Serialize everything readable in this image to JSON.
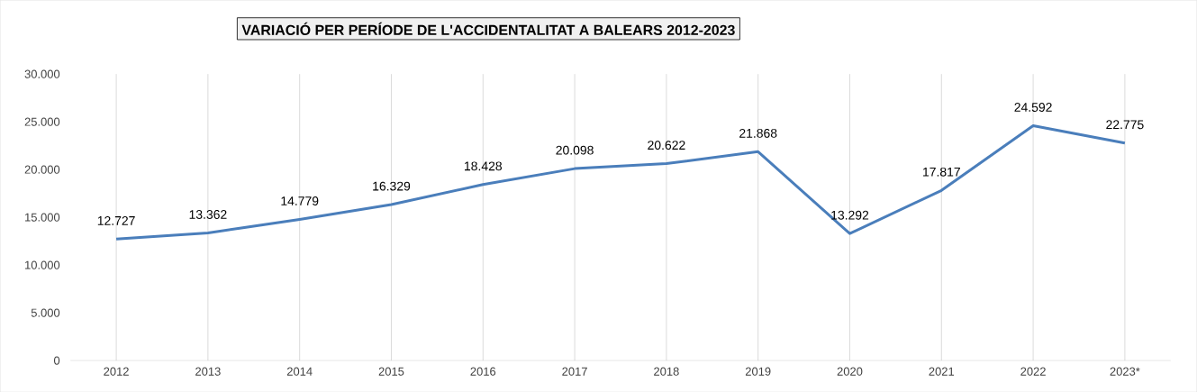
{
  "chart_data": {
    "type": "line",
    "title": "VARIACIÓ PER PERÍODE DE L'ACCIDENTALITAT A BALEARS 2012-2023",
    "categories": [
      "2012",
      "2013",
      "2014",
      "2015",
      "2016",
      "2017",
      "2018",
      "2019",
      "2020",
      "2021",
      "2022",
      "2023*"
    ],
    "series": [
      {
        "color": "#4a7ebb",
        "values": [
          12727,
          13362,
          14779,
          16329,
          18428,
          20098,
          20622,
          21868,
          13292,
          17817,
          24592,
          22775
        ],
        "value_labels": [
          "12.727",
          "13.362",
          "14.779",
          "16.329",
          "18.428",
          "20.098",
          "20.622",
          "21.868",
          "13.292",
          "17.817",
          "24.592",
          "22.775"
        ]
      }
    ],
    "ylim": [
      0,
      30000
    ],
    "yticks": [
      0,
      {
        "value": 5000,
        "label": "5.000"
      },
      {
        "value": 10000,
        "label": "10.000"
      },
      {
        "value": 15000,
        "label": "15.000"
      },
      {
        "value": 20000,
        "label": "20.000"
      },
      {
        "value": 25000,
        "label": "25.000"
      },
      {
        "value": 30000,
        "label": "30.000"
      }
    ],
    "grid": "x",
    "legend": false,
    "marker": "none",
    "line_style": "solid"
  }
}
